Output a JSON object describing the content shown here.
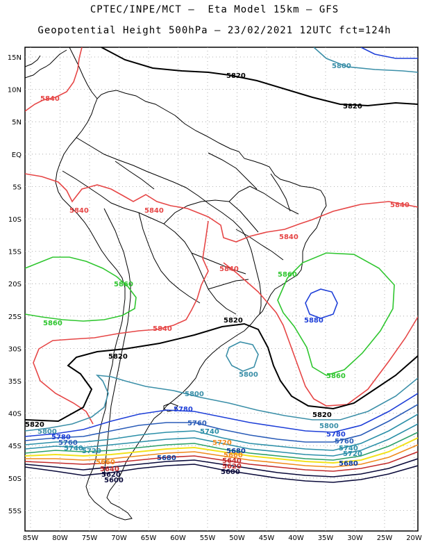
{
  "header": {
    "line1": "CPTEC/INPE/MCT –  Eta Model 15km – GFS",
    "line2": "Geopotential Height 500hPa – 23/02/2021 12UTC fct=124h"
  },
  "axes": {
    "lat_labels": [
      "15N",
      "10N",
      "5N",
      "EQ",
      "5S",
      "10S",
      "15S",
      "20S",
      "25S",
      "30S",
      "35S",
      "40S",
      "45S",
      "50S",
      "55S"
    ],
    "lon_labels": [
      "85W",
      "80W",
      "75W",
      "70W",
      "65W",
      "60W",
      "55W",
      "50W",
      "45W",
      "40W",
      "35W",
      "30W",
      "25W",
      "20W"
    ]
  },
  "contours": {
    "colors": {
      "5620": "#0a0a3a",
      "5640": "#c22b2b",
      "5660": "#f08a1c",
      "5680": "#f2e21a",
      "5700": "#2ca06a",
      "5720": "#2b8fa8",
      "5740": "#0b3a9a",
      "5760": "#2a5cb8",
      "5780": "#1e3fd8",
      "5800": "#3b8fa8",
      "5820": "#000000",
      "5840": "#e64646",
      "5860": "#2fc62f",
      "5880": "#1e3fd8"
    },
    "labels": [
      {
        "text": "5820",
        "color": "#000000"
      },
      {
        "text": "5820",
        "color": "#000000"
      },
      {
        "text": "5800",
        "color": "#3b8fa8"
      },
      {
        "text": "5840",
        "color": "#e64646"
      },
      {
        "text": "5840",
        "color": "#e64646"
      },
      {
        "text": "5840",
        "color": "#e64646"
      },
      {
        "text": "5840",
        "color": "#e64646"
      },
      {
        "text": "5840",
        "color": "#e64646"
      },
      {
        "text": "5840",
        "color": "#e64646"
      },
      {
        "text": "5860",
        "color": "#2fc62f"
      },
      {
        "text": "5860",
        "color": "#2fc62f"
      },
      {
        "text": "5860",
        "color": "#2fc62f"
      },
      {
        "text": "5880",
        "color": "#1e3fd8"
      },
      {
        "text": "5860",
        "color": "#2fc62f"
      },
      {
        "text": "5820",
        "color": "#000000"
      },
      {
        "text": "5820",
        "color": "#000000"
      },
      {
        "text": "5840",
        "color": "#e64646"
      },
      {
        "text": "5800",
        "color": "#3b8fa8"
      },
      {
        "text": "5800",
        "color": "#3b8fa8"
      },
      {
        "text": "5820",
        "color": "#000000"
      },
      {
        "text": "5820",
        "color": "#000000"
      },
      {
        "text": "5780",
        "color": "#1e3fd8"
      },
      {
        "text": "5800",
        "color": "#3b8fa8"
      },
      {
        "text": "5760",
        "color": "#2a5cb8"
      },
      {
        "text": "5740",
        "color": "#2b8fa8"
      },
      {
        "text": "5720",
        "color": "#f08a1c"
      },
      {
        "text": "5780",
        "color": "#1e3fd8"
      },
      {
        "text": "5760",
        "color": "#2a5cb8"
      },
      {
        "text": "5740",
        "color": "#2b8fa8"
      },
      {
        "text": "5720",
        "color": "#2b8fa8"
      },
      {
        "text": "5680",
        "color": "#0b3a9a"
      },
      {
        "text": "5680",
        "color": "#0b3a9a"
      },
      {
        "text": "5800",
        "color": "#3b8fa8"
      },
      {
        "text": "5780",
        "color": "#1e3fd8"
      },
      {
        "text": "5760",
        "color": "#2a5cb8"
      },
      {
        "text": "5740",
        "color": "#2b8fa8"
      },
      {
        "text": "5720",
        "color": "#2b8fa8"
      },
      {
        "text": "5680",
        "color": "#0b3a9a"
      },
      {
        "text": "5660",
        "color": "#f08a1c"
      },
      {
        "text": "5640",
        "color": "#c22b2b"
      },
      {
        "text": "5620",
        "color": "#0a0a3a"
      },
      {
        "text": "5600",
        "color": "#0a0a3a"
      },
      {
        "text": "5660",
        "color": "#f08a1c"
      },
      {
        "text": "5640",
        "color": "#c22b2b"
      },
      {
        "text": "5620",
        "color": "#c22b2b"
      },
      {
        "text": "5600",
        "color": "#0a0a3a"
      }
    ]
  }
}
